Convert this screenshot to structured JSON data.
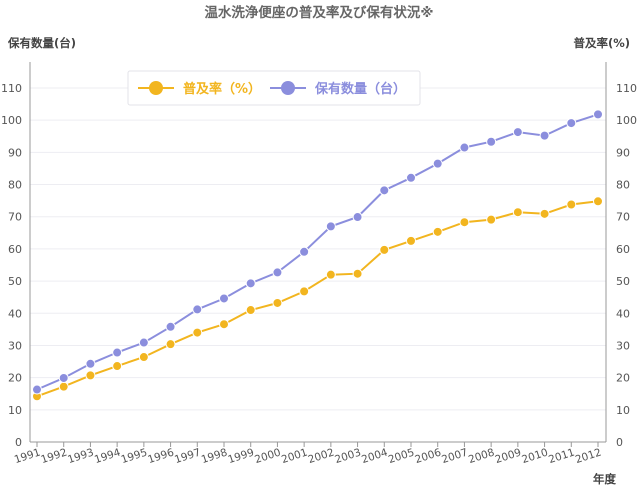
{
  "colors": {
    "penetration": "#F2B51F",
    "ownership": "#8B8EDD",
    "grid": "#EDEDF2",
    "axis": "#999999"
  },
  "chart_data": {
    "type": "line",
    "title": "温水洗浄便座の普及率及び保有状況※",
    "left_axis_title": "保有数量(台)",
    "right_axis_title": "普及率(%)",
    "xlabel": "年度",
    "x": [
      "1991",
      "1992",
      "1993",
      "1994",
      "1995",
      "1996",
      "1997",
      "1998",
      "1999",
      "2000",
      "2001",
      "2002",
      "2003",
      "2004",
      "2005",
      "2006",
      "2007",
      "2008",
      "2009",
      "2010",
      "2011",
      "2012"
    ],
    "ylim": [
      0,
      110
    ],
    "y_ticks": [
      "0",
      "10",
      "20",
      "30",
      "40",
      "50",
      "60",
      "70",
      "80",
      "90",
      "100",
      "110"
    ],
    "grid": true,
    "legend_position": "top-left",
    "series": [
      {
        "name": "普及率（%）",
        "axis": "right",
        "color_key": "penetration",
        "values": [
          14.2,
          17.2,
          20.7,
          23.6,
          26.4,
          30.4,
          34.0,
          36.6,
          41.0,
          43.2,
          46.8,
          52.0,
          52.3,
          59.7,
          62.5,
          65.3,
          68.3,
          69.1,
          71.4,
          70.9,
          73.8,
          74.8
        ]
      },
      {
        "name": "保有数量（台）",
        "axis": "left",
        "color_key": "ownership",
        "values": [
          16.3,
          19.9,
          24.3,
          27.8,
          30.9,
          35.8,
          41.2,
          44.6,
          49.3,
          52.7,
          59.1,
          67.0,
          69.9,
          78.2,
          82.1,
          86.5,
          91.5,
          93.3,
          96.3,
          95.2,
          99.1,
          101.8
        ]
      }
    ]
  }
}
